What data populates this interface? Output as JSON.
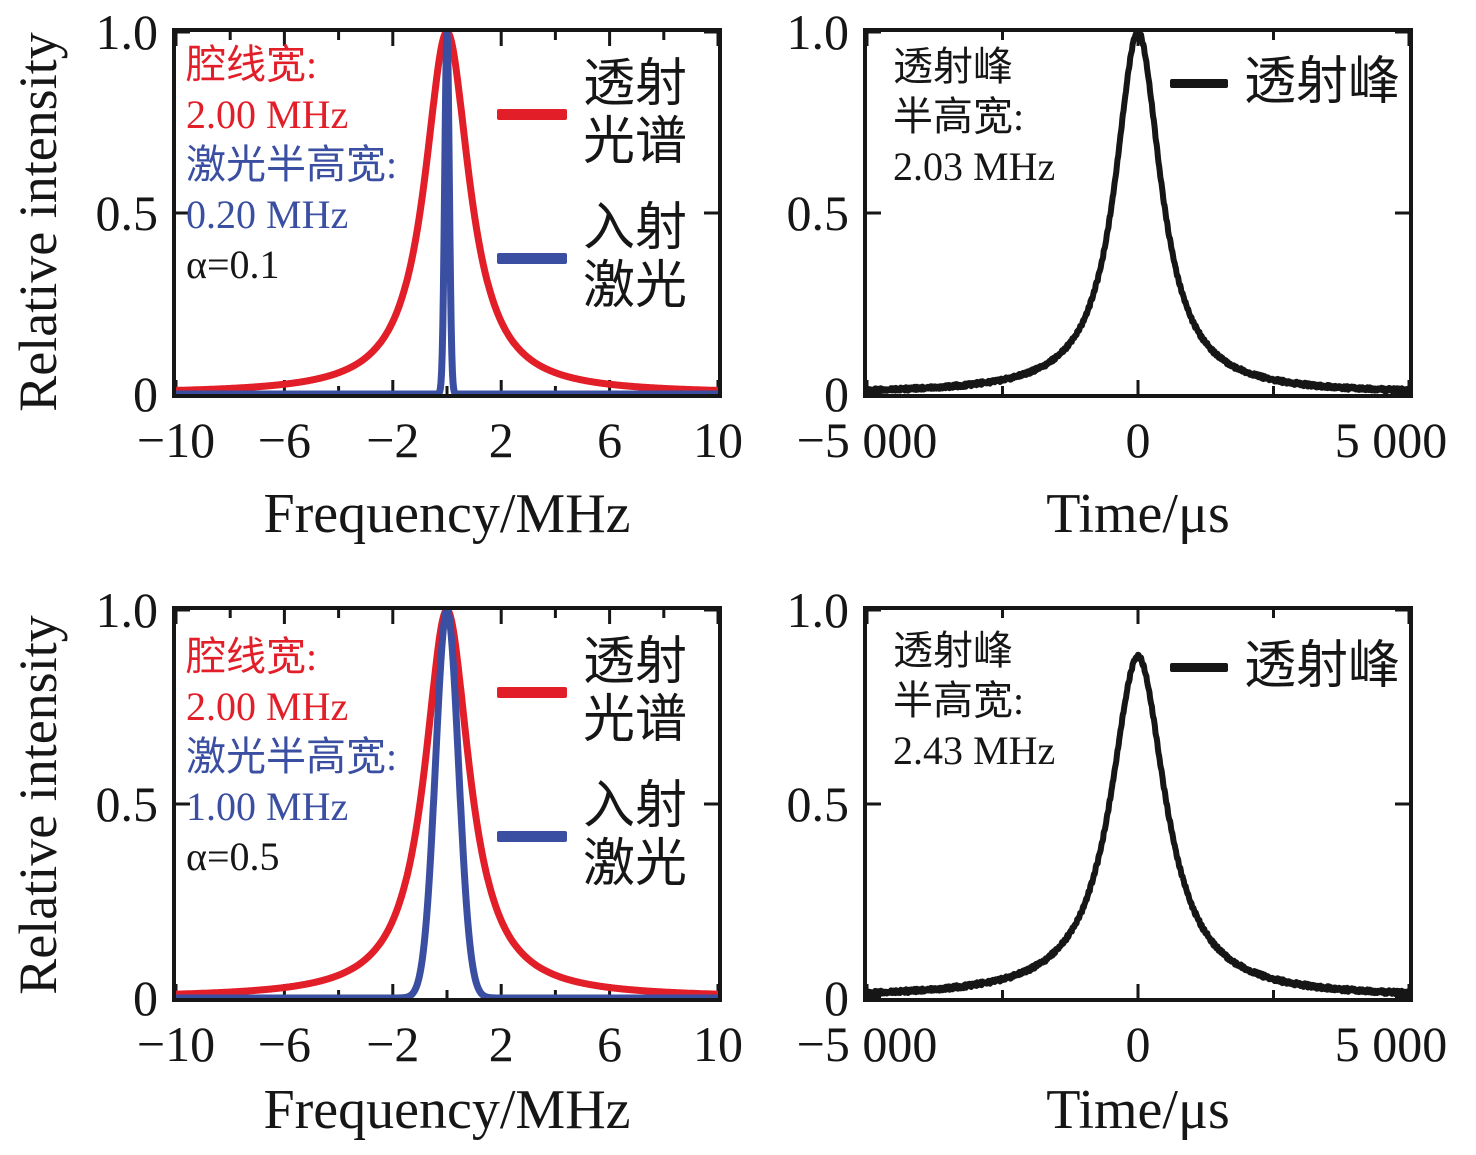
{
  "figure": {
    "background": "#ffffff",
    "colors": {
      "red": "#e21e28",
      "blue": "#3a4fa2",
      "black": "#161616"
    }
  },
  "chart_data": [
    {
      "id": "spectrum-alpha-0.1",
      "type": "line",
      "xlabel": "Frequency/MHz",
      "ylabel": "Relative intensity",
      "xlim": [
        -10,
        10
      ],
      "ylim": [
        0,
        1
      ],
      "x_major_ticks": [
        -10,
        -6,
        -2,
        2,
        6,
        10
      ],
      "x_tick_labels": [
        "−10",
        "−6",
        "−2",
        "2",
        "6",
        "10"
      ],
      "x_minor_ticks": [
        -8,
        -4,
        0,
        4,
        8
      ],
      "y_major_ticks": [
        1,
        0.5,
        0
      ],
      "y_tick_labels": [
        "1.0",
        "0.5",
        "0"
      ],
      "grid": false,
      "legend_position": "upper right inside",
      "series": [
        {
          "name": "透射光谱",
          "shape": "lorentzian",
          "center": 0,
          "fwhm": 2.0,
          "amplitude": 1.0,
          "color": "#e21e28",
          "linewidth": 7
        },
        {
          "name": "入射激光",
          "shape": "gaussian",
          "center": 0,
          "fwhm": 0.2,
          "amplitude": 1.0,
          "color": "#3a4fa2",
          "linewidth": 7
        }
      ],
      "annotation_lines": [
        {
          "text": "腔线宽:",
          "color": "#e21e28"
        },
        {
          "text": "2.00 MHz",
          "color": "#e21e28"
        },
        {
          "text": "激光半高宽:",
          "color": "#3a4fa2"
        },
        {
          "text": "0.20 MHz",
          "color": "#3a4fa2"
        },
        {
          "text": "α=0.1",
          "color": "#161616"
        }
      ],
      "legend": [
        {
          "lines": [
            "透射",
            "光谱"
          ],
          "color": "#e21e28"
        },
        {
          "lines": [
            "入射",
            "激光"
          ],
          "color": "#3a4fa2"
        }
      ]
    },
    {
      "id": "transmission-peak-time-alpha-0.1",
      "type": "line",
      "xlabel": "Time/μs",
      "ylabel": "",
      "xlim": [
        -5000,
        5000
      ],
      "ylim": [
        0,
        1
      ],
      "x_major_ticks": [
        -5000,
        0,
        5000
      ],
      "x_tick_labels": [
        "−5 000",
        "0",
        "5 000"
      ],
      "x_minor_ticks": [
        -2500,
        2500
      ],
      "y_major_ticks": [
        1,
        0.5,
        0
      ],
      "y_tick_labels": [
        "1.0",
        "0.5",
        "0"
      ],
      "grid": false,
      "legend_position": "upper right inside",
      "series": [
        {
          "name": "透射峰",
          "shape": "lorentzian",
          "center": 0,
          "fwhm": 1015,
          "amplitude": 1.0,
          "color": "#161616",
          "linewidth": 6,
          "noise": 0.005
        }
      ],
      "annotation_lines": [
        {
          "text": "透射峰",
          "color": "#161616"
        },
        {
          "text": "半高宽:",
          "color": "#161616"
        },
        {
          "text": "2.03 MHz",
          "color": "#161616"
        }
      ],
      "legend": [
        {
          "lines": [
            "透射峰"
          ],
          "color": "#161616"
        }
      ]
    },
    {
      "id": "spectrum-alpha-0.5",
      "type": "line",
      "xlabel": "Frequency/MHz",
      "ylabel": "Relative intensity",
      "xlim": [
        -10,
        10
      ],
      "ylim": [
        0,
        1
      ],
      "x_major_ticks": [
        -10,
        -6,
        -2,
        2,
        6,
        10
      ],
      "x_tick_labels": [
        "−10",
        "−6",
        "−2",
        "2",
        "6",
        "10"
      ],
      "x_minor_ticks": [
        -8,
        -4,
        0,
        4,
        8
      ],
      "y_major_ticks": [
        1,
        0.5,
        0
      ],
      "y_tick_labels": [
        "1.0",
        "0.5",
        "0"
      ],
      "grid": false,
      "legend_position": "upper right inside",
      "series": [
        {
          "name": "透射光谱",
          "shape": "lorentzian",
          "center": 0,
          "fwhm": 2.0,
          "amplitude": 1.0,
          "color": "#e21e28",
          "linewidth": 7
        },
        {
          "name": "入射激光",
          "shape": "gaussian",
          "center": 0,
          "fwhm": 1.0,
          "amplitude": 1.0,
          "color": "#3a4fa2",
          "linewidth": 7
        }
      ],
      "annotation_lines": [
        {
          "text": "腔线宽:",
          "color": "#e21e28"
        },
        {
          "text": "2.00 MHz",
          "color": "#e21e28"
        },
        {
          "text": "激光半高宽:",
          "color": "#3a4fa2"
        },
        {
          "text": "1.00 MHz",
          "color": "#3a4fa2"
        },
        {
          "text": "α=0.5",
          "color": "#161616"
        }
      ],
      "legend": [
        {
          "lines": [
            "透射",
            "光谱"
          ],
          "color": "#e21e28"
        },
        {
          "lines": [
            "入射",
            "激光"
          ],
          "color": "#3a4fa2"
        }
      ]
    },
    {
      "id": "transmission-peak-time-alpha-0.5",
      "type": "line",
      "xlabel": "Time/μs",
      "ylabel": "",
      "xlim": [
        -5000,
        5000
      ],
      "ylim": [
        0,
        1
      ],
      "x_major_ticks": [
        -5000,
        0,
        5000
      ],
      "x_tick_labels": [
        "−5 000",
        "0",
        "5 000"
      ],
      "x_minor_ticks": [
        -2500,
        2500
      ],
      "y_major_ticks": [
        1,
        0.5,
        0
      ],
      "y_tick_labels": [
        "1.0",
        "0.5",
        "0"
      ],
      "grid": false,
      "legend_position": "upper right inside",
      "series": [
        {
          "name": "透射峰",
          "shape": "lorentzian",
          "center": 0,
          "fwhm": 1215,
          "amplitude": 0.88,
          "color": "#161616",
          "linewidth": 6,
          "noise": 0.005
        }
      ],
      "annotation_lines": [
        {
          "text": "透射峰",
          "color": "#161616"
        },
        {
          "text": "半高宽:",
          "color": "#161616"
        },
        {
          "text": "2.43 MHz",
          "color": "#161616"
        }
      ],
      "legend": [
        {
          "lines": [
            "透射峰"
          ],
          "color": "#161616"
        }
      ]
    }
  ]
}
